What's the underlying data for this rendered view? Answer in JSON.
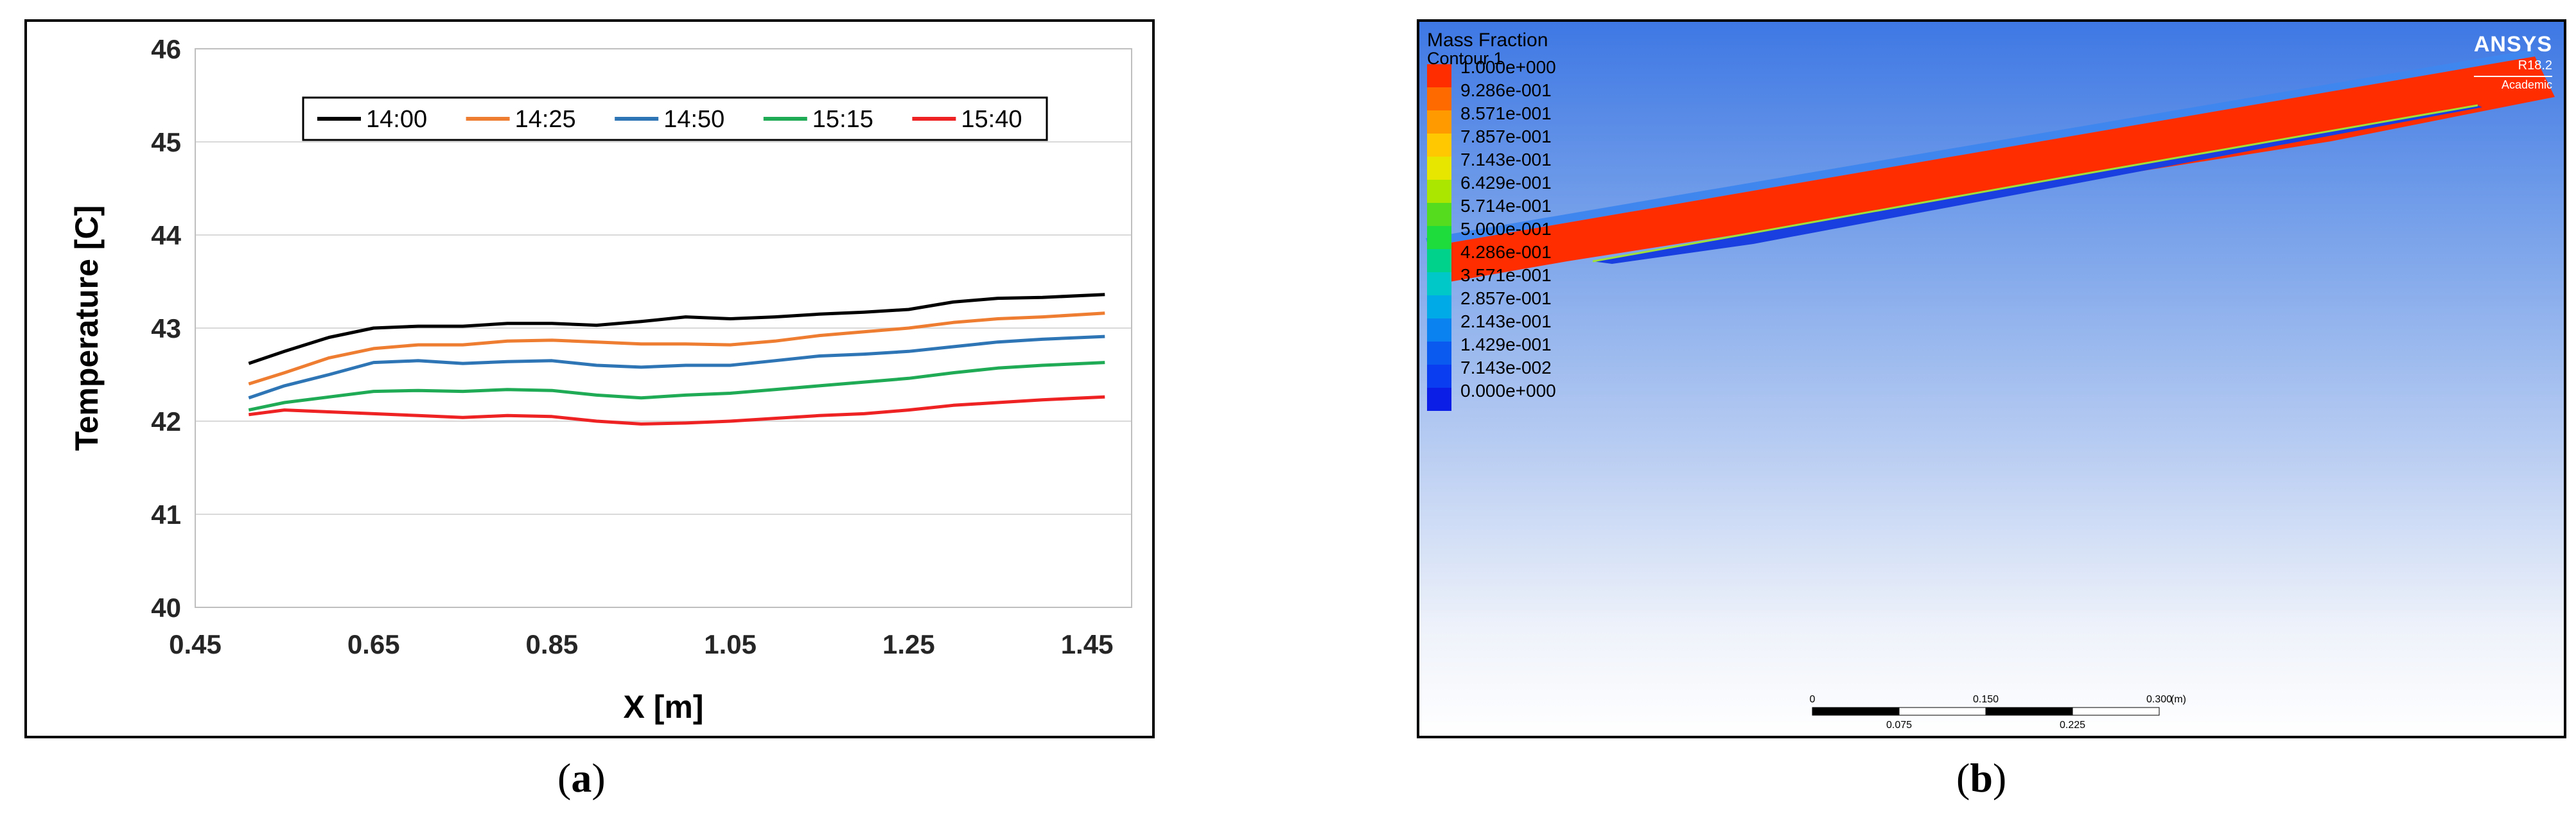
{
  "captions": {
    "a": "a",
    "b": "b"
  },
  "chart_data": {
    "type": "line",
    "xlabel": "X  [m]",
    "ylabel": "Temperature  [C]",
    "xlim": [
      0.45,
      1.5
    ],
    "ylim": [
      40,
      46
    ],
    "xticks": [
      "0.45",
      "0.65",
      "0.85",
      "1.05",
      "1.25",
      "1.45"
    ],
    "yticks": [
      "40",
      "41",
      "42",
      "43",
      "44",
      "45",
      "46"
    ],
    "legend_position": "top-center",
    "grid": "horizontal",
    "series": [
      {
        "name": "14:00",
        "color": "#000000",
        "x": [
          0.51,
          0.55,
          0.6,
          0.65,
          0.7,
          0.75,
          0.8,
          0.85,
          0.9,
          0.95,
          1.0,
          1.05,
          1.1,
          1.15,
          1.2,
          1.25,
          1.3,
          1.35,
          1.4,
          1.47
        ],
        "y": [
          42.62,
          42.75,
          42.9,
          43.0,
          43.02,
          43.02,
          43.05,
          43.05,
          43.03,
          43.07,
          43.12,
          43.1,
          43.12,
          43.15,
          43.17,
          43.2,
          43.28,
          43.32,
          43.33,
          43.36
        ]
      },
      {
        "name": "14:25",
        "color": "#ee7d31",
        "x": [
          0.51,
          0.55,
          0.6,
          0.65,
          0.7,
          0.75,
          0.8,
          0.85,
          0.9,
          0.95,
          1.0,
          1.05,
          1.1,
          1.15,
          1.2,
          1.25,
          1.3,
          1.35,
          1.4,
          1.47
        ],
        "y": [
          42.4,
          42.52,
          42.68,
          42.78,
          42.82,
          42.82,
          42.86,
          42.87,
          42.85,
          42.83,
          42.83,
          42.82,
          42.86,
          42.92,
          42.96,
          43.0,
          43.06,
          43.1,
          43.12,
          43.16
        ]
      },
      {
        "name": "14:50",
        "color": "#2e75b6",
        "x": [
          0.51,
          0.55,
          0.6,
          0.65,
          0.7,
          0.75,
          0.8,
          0.85,
          0.9,
          0.95,
          1.0,
          1.05,
          1.1,
          1.15,
          1.2,
          1.25,
          1.3,
          1.35,
          1.4,
          1.47
        ],
        "y": [
          42.25,
          42.38,
          42.5,
          42.63,
          42.65,
          42.62,
          42.64,
          42.65,
          42.6,
          42.58,
          42.6,
          42.6,
          42.65,
          42.7,
          42.72,
          42.75,
          42.8,
          42.85,
          42.88,
          42.91
        ]
      },
      {
        "name": "15:15",
        "color": "#1faa55",
        "x": [
          0.51,
          0.55,
          0.6,
          0.65,
          0.7,
          0.75,
          0.8,
          0.85,
          0.9,
          0.95,
          1.0,
          1.05,
          1.1,
          1.15,
          1.2,
          1.25,
          1.3,
          1.35,
          1.4,
          1.47
        ],
        "y": [
          42.12,
          42.2,
          42.26,
          42.32,
          42.33,
          42.32,
          42.34,
          42.33,
          42.28,
          42.25,
          42.28,
          42.3,
          42.34,
          42.38,
          42.42,
          42.46,
          42.52,
          42.57,
          42.6,
          42.63
        ]
      },
      {
        "name": "15:40",
        "color": "#ee2222",
        "x": [
          0.51,
          0.55,
          0.6,
          0.65,
          0.7,
          0.75,
          0.8,
          0.85,
          0.9,
          0.95,
          1.0,
          1.05,
          1.1,
          1.15,
          1.2,
          1.25,
          1.3,
          1.35,
          1.4,
          1.47
        ],
        "y": [
          42.07,
          42.12,
          42.1,
          42.08,
          42.06,
          42.04,
          42.06,
          42.05,
          42.0,
          41.97,
          41.98,
          42.0,
          42.03,
          42.06,
          42.08,
          42.12,
          42.17,
          42.2,
          42.23,
          42.26
        ]
      }
    ]
  },
  "contour": {
    "title": "Mass Fraction",
    "subtitle": "Contour 1",
    "colorbar_labels": [
      "1.000e+000",
      "9.286e-001",
      "8.571e-001",
      "7.857e-001",
      "7.143e-001",
      "6.429e-001",
      "5.714e-001",
      "5.000e-001",
      "4.286e-001",
      "3.571e-001",
      "2.857e-001",
      "2.143e-001",
      "1.429e-001",
      "7.143e-002",
      "0.000e+000"
    ],
    "colorbar_colors": [
      "#ff2d00",
      "#ff6a00",
      "#ff9a00",
      "#ffc800",
      "#e6e600",
      "#aae600",
      "#55dc1e",
      "#1edc3c",
      "#00d28c",
      "#00c8c8",
      "#00aae6",
      "#0a82f0",
      "#0a5af0",
      "#0a3cf0",
      "#0a1ee6"
    ],
    "logo": {
      "name": "ANSYS",
      "version": "R18.2",
      "edition": "Academic"
    },
    "scale": {
      "top_labels": [
        "0",
        "0.150",
        "0.300"
      ],
      "unit": "(m)",
      "bottom_labels": [
        "0.075",
        "0.225"
      ]
    }
  }
}
